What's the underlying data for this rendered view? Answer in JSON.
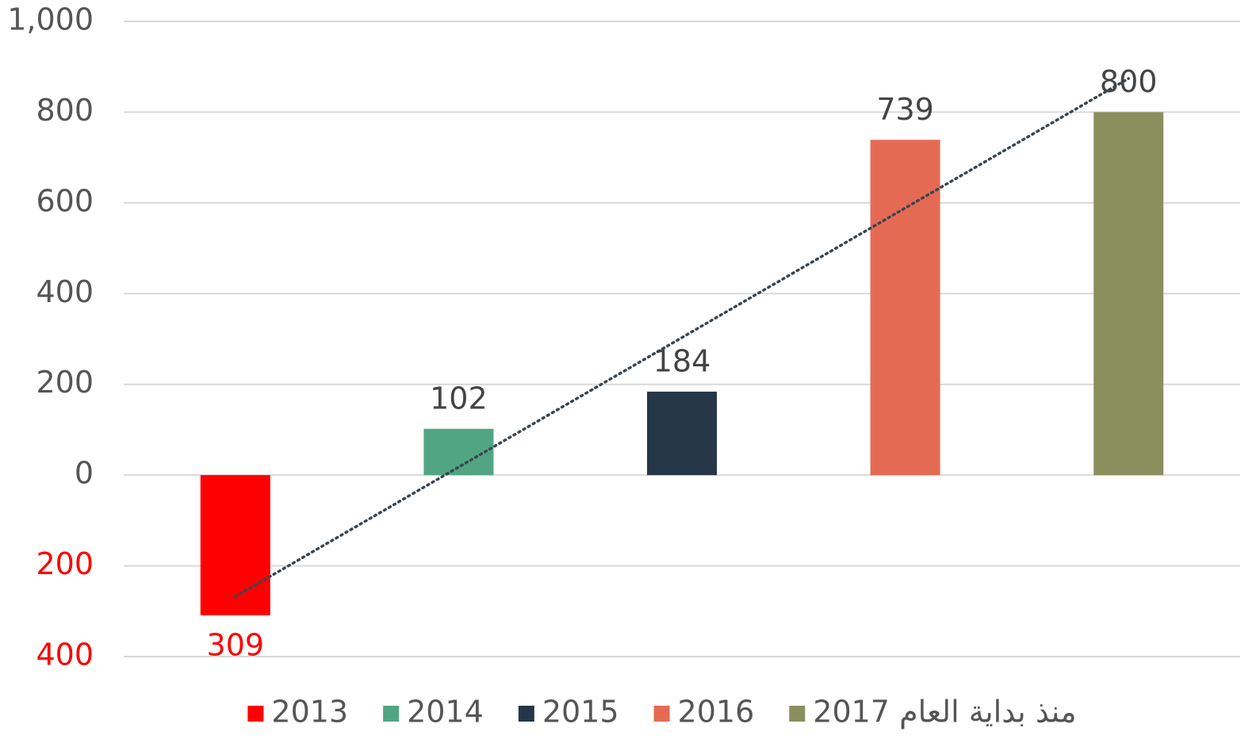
{
  "chart_data": {
    "type": "bar",
    "categories": [
      "2013",
      "2014",
      "2015",
      "2016",
      "منذ بداية العام 2017"
    ],
    "values": [
      -309,
      102,
      184,
      739,
      800
    ],
    "value_labels": [
      "309",
      "102",
      "184",
      "739",
      "800"
    ],
    "colors": [
      "#ff0000",
      "#52a583",
      "#243647",
      "#e56a54",
      "#8a8f5e"
    ],
    "negative_color": "#ff0000",
    "ylim": [
      -400,
      1000
    ],
    "yticks": [
      {
        "value": -400,
        "label": "400"
      },
      {
        "value": -200,
        "label": "200"
      },
      0,
      200,
      400,
      600,
      800,
      {
        "value": 1000,
        "label": "1,000"
      }
    ],
    "grid": true,
    "trendline": "linear",
    "legend": "bottom"
  }
}
